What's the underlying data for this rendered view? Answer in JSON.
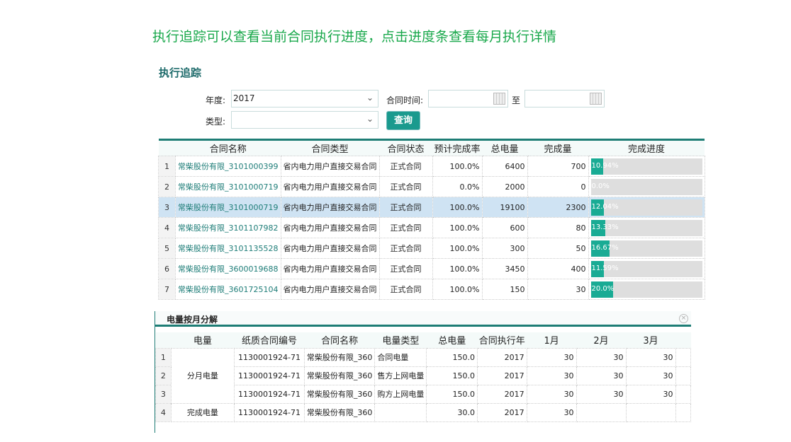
{
  "headline": "执行追踪可以查看当前合同执行进度，点击进度条查看每月执行详情",
  "title": "执行追踪",
  "filters": {
    "year_label": "年度:",
    "year_value": "2017",
    "date_label": "合同时间:",
    "date_from": "",
    "to_label": "至",
    "date_to": "",
    "type_label": "类型:",
    "type_value": "",
    "query_label": "查询"
  },
  "colors": {
    "accent": "#1a9a8e",
    "progress": "#19ab94",
    "headline": "#19a84b"
  },
  "table": {
    "headers": [
      "",
      "合同名称",
      "合同类型",
      "合同状态",
      "预计完成率",
      "总电量",
      "完成量",
      "完成进度"
    ],
    "rows": [
      {
        "idx": "1",
        "name": "常柴股份有限_3101000399",
        "type": "省内电力用户直接交易合同",
        "status": "正式合同",
        "rate": "100.0%",
        "total": "6400",
        "done": "700",
        "progress": "10.94%",
        "pct": 10.94
      },
      {
        "idx": "2",
        "name": "常柴股份有限_3101000719",
        "type": "省内电力用户直接交易合同",
        "status": "正式合同",
        "rate": "0.0%",
        "total": "2000",
        "done": "0",
        "progress": "0.0%",
        "pct": 0
      },
      {
        "idx": "3",
        "name": "常柴股份有限_3101000719",
        "type": "省内电力用户直接交易合同",
        "status": "正式合同",
        "rate": "100.0%",
        "total": "19100",
        "done": "2300",
        "progress": "12.04%",
        "pct": 12.04,
        "selected": true
      },
      {
        "idx": "4",
        "name": "常柴股份有限_3101107982",
        "type": "省内电力用户直接交易合同",
        "status": "正式合同",
        "rate": "100.0%",
        "total": "600",
        "done": "80",
        "progress": "13.33%",
        "pct": 13.33
      },
      {
        "idx": "5",
        "name": "常柴股份有限_3101135528",
        "type": "省内电力用户直接交易合同",
        "status": "正式合同",
        "rate": "100.0%",
        "total": "300",
        "done": "50",
        "progress": "16.67%",
        "pct": 16.67
      },
      {
        "idx": "6",
        "name": "常柴股份有限_3600019688",
        "type": "省内电力用户直接交易合同",
        "status": "正式合同",
        "rate": "100.0%",
        "total": "3450",
        "done": "400",
        "progress": "11.59%",
        "pct": 11.59
      },
      {
        "idx": "7",
        "name": "常柴股份有限_3601725104",
        "type": "省内电力用户直接交易合同",
        "status": "正式合同",
        "rate": "100.0%",
        "total": "150",
        "done": "30",
        "progress": "20.0%",
        "pct": 20
      }
    ]
  },
  "popup": {
    "title": "电量按月分解",
    "headers": [
      "",
      "电量",
      "纸质合同编号",
      "合同名称",
      "电量类型",
      "总电量",
      "合同执行年",
      "1月",
      "2月",
      "3月",
      ""
    ],
    "group1": "分月电量",
    "rows": [
      {
        "idx": "1",
        "code": "1130001924-71",
        "name": "常柴股份有限_360",
        "etype": "合同电量",
        "total": "150.0",
        "year": "2017",
        "m1": "30",
        "m2": "30",
        "m3": "30"
      },
      {
        "idx": "2",
        "code": "1130001924-71",
        "name": "常柴股份有限_360",
        "etype": "售方上网电量",
        "total": "150.0",
        "year": "2017",
        "m1": "30",
        "m2": "30",
        "m3": "30"
      },
      {
        "idx": "3",
        "code": "1130001924-71",
        "name": "常柴股份有限_360",
        "etype": "购方上网电量",
        "total": "150.0",
        "year": "2017",
        "m1": "30",
        "m2": "30",
        "m3": "30"
      },
      {
        "idx": "4",
        "group": "完成电量",
        "code": "1130001924-71",
        "name": "常柴股份有限_360",
        "etype": "",
        "total": "30.0",
        "year": "2017",
        "m1": "30",
        "m2": "",
        "m3": ""
      }
    ]
  }
}
